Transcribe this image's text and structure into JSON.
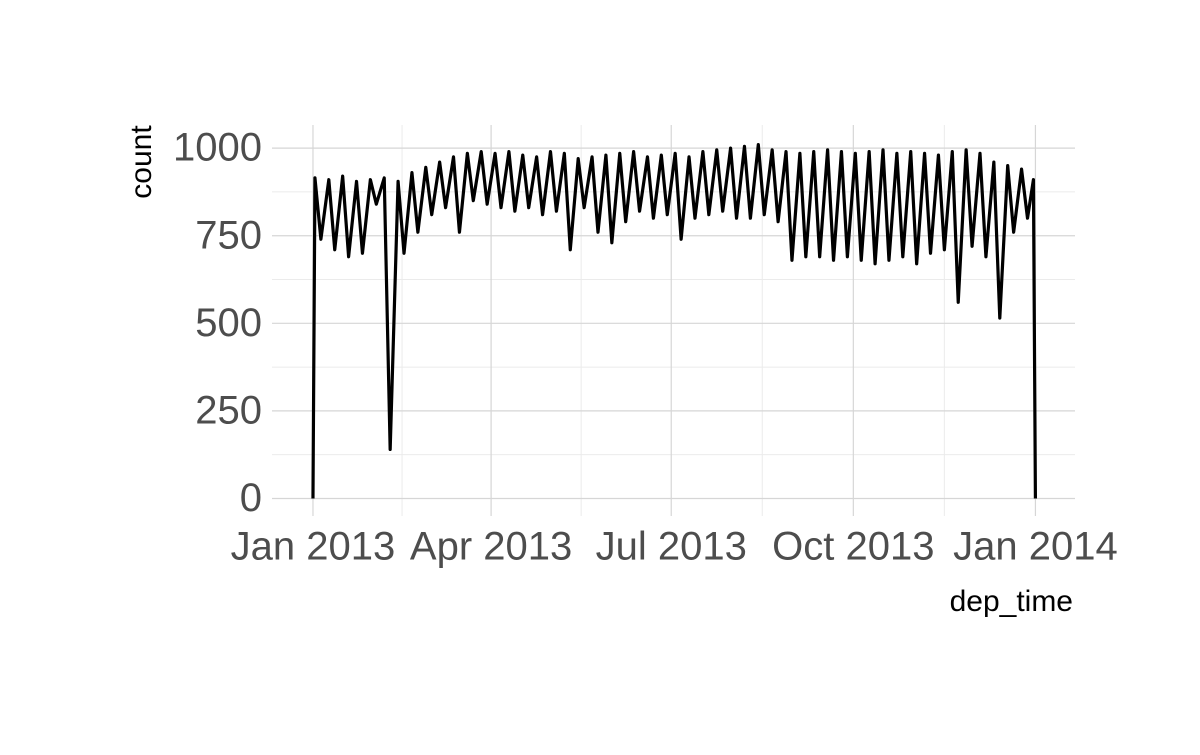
{
  "chart_data": {
    "type": "line",
    "x_label": "dep_time",
    "y_label": "count",
    "x": [
      0,
      1,
      4,
      8,
      11,
      15,
      18,
      22,
      25,
      29,
      32,
      36,
      39,
      43,
      46,
      50,
      53,
      57,
      60,
      64,
      67,
      71,
      74,
      78,
      81,
      85,
      88,
      92,
      95,
      99,
      102,
      106,
      109,
      113,
      116,
      120,
      123,
      127,
      130,
      134,
      137,
      141,
      144,
      148,
      151,
      155,
      158,
      162,
      165,
      169,
      172,
      176,
      179,
      183,
      186,
      190,
      193,
      197,
      200,
      204,
      207,
      211,
      214,
      218,
      221,
      225,
      228,
      232,
      235,
      239,
      242,
      246,
      249,
      253,
      256,
      260,
      263,
      267,
      270,
      274,
      277,
      281,
      284,
      288,
      291,
      295,
      298,
      302,
      305,
      309,
      312,
      316,
      319,
      323,
      326,
      330,
      333,
      337,
      340,
      344,
      347,
      351,
      354,
      358,
      361,
      364,
      365
    ],
    "values": [
      0,
      915,
      740,
      910,
      710,
      920,
      690,
      905,
      700,
      910,
      840,
      915,
      140,
      905,
      700,
      930,
      760,
      945,
      810,
      960,
      830,
      975,
      760,
      985,
      850,
      990,
      840,
      985,
      830,
      990,
      820,
      980,
      830,
      975,
      810,
      990,
      820,
      985,
      710,
      970,
      830,
      975,
      760,
      980,
      730,
      985,
      790,
      990,
      820,
      975,
      800,
      980,
      810,
      985,
      740,
      975,
      800,
      990,
      810,
      995,
      820,
      1000,
      800,
      1005,
      800,
      1010,
      810,
      995,
      790,
      990,
      680,
      985,
      690,
      990,
      690,
      995,
      680,
      990,
      690,
      985,
      680,
      990,
      670,
      995,
      680,
      985,
      690,
      990,
      670,
      985,
      700,
      980,
      710,
      990,
      560,
      995,
      720,
      985,
      690,
      960,
      515,
      950,
      760,
      940,
      800,
      910,
      0
    ],
    "color": "#000000",
    "xlim": [
      -20.7,
      385
    ],
    "xticks": [
      {
        "value": 0,
        "label": "Jan 2013"
      },
      {
        "value": 90,
        "label": "Apr 2013"
      },
      {
        "value": 181,
        "label": "Jul 2013"
      },
      {
        "value": 273,
        "label": "Oct 2013"
      },
      {
        "value": 365,
        "label": "Jan 2014"
      }
    ],
    "minor_xticks": [
      45,
      135.5,
      227,
      319
    ],
    "ylim": [
      -50,
      1066
    ],
    "yticks": [
      0,
      250,
      500,
      750,
      1000
    ],
    "minor_yticks": [
      125,
      375,
      625,
      875
    ],
    "grid": true
  }
}
